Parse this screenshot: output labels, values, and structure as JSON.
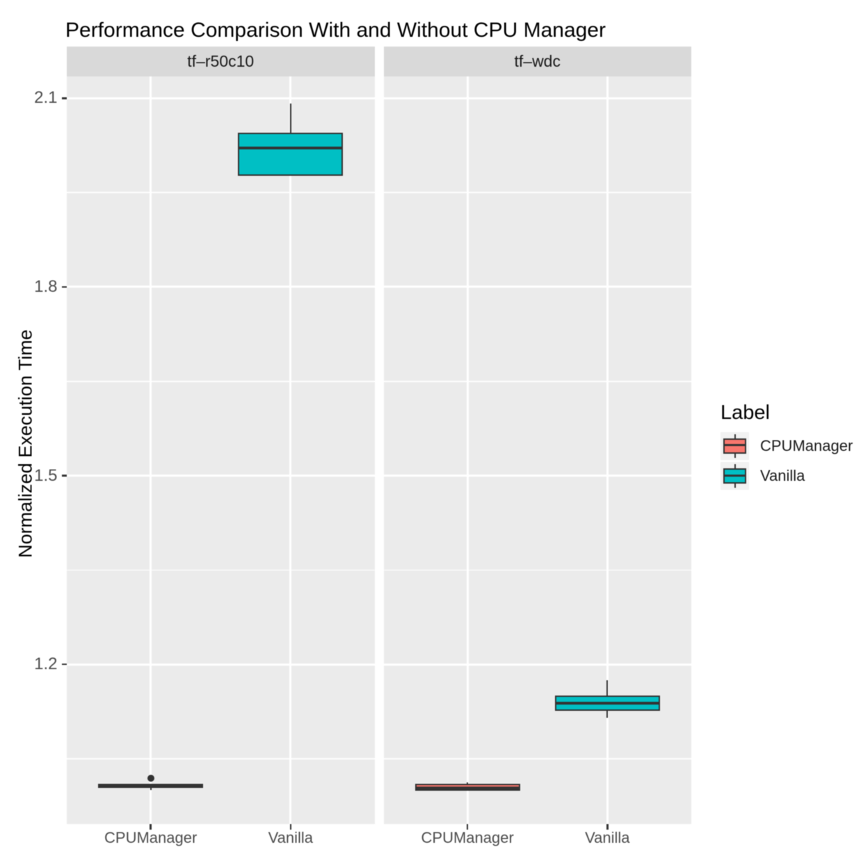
{
  "title": "Performance Comparison With and Without CPU Manager",
  "y_axis": {
    "title": "Normalized Execution Time",
    "tick_labels": [
      "2.1",
      "1.8",
      "1.5",
      "1.2"
    ],
    "tick_values": [
      2.1,
      1.8,
      1.5,
      1.2
    ]
  },
  "x_axis": {
    "categories": [
      "CPUManager",
      "Vanilla"
    ]
  },
  "facets": [
    {
      "label": "tf–r50c10"
    },
    {
      "label": "tf–wdc"
    }
  ],
  "legend": {
    "title": "Label",
    "items": [
      {
        "label": "CPUManager",
        "color": "#F8766D"
      },
      {
        "label": "Vanilla",
        "color": "#00BFC4"
      }
    ]
  },
  "colors": {
    "panel_background": "#EBEBEB",
    "strip_background": "#D9D9D9",
    "gridline": "#FFFFFF",
    "box_outline": "#333333",
    "cpumanager_fill": "#F8766D",
    "vanilla_fill": "#00BFC4",
    "axis_text": "#4D4D4D",
    "legend_key_background": "#F2F2F2"
  },
  "chart_data": {
    "type": "boxplot",
    "title": "Performance Comparison With and Without CPU Manager",
    "xlabel": "",
    "ylabel": "Normalized Execution Time",
    "ylim": [
      0.9455,
      2.135
    ],
    "yticks": [
      1.2,
      1.5,
      1.8,
      2.1
    ],
    "yticks_minor": [
      1.05,
      1.35,
      1.65,
      1.95
    ],
    "legend_position": "right",
    "legend_title": "Label",
    "grid": true,
    "facet_labels": [
      "tf–r50c10",
      "tf–wdc"
    ],
    "categories": [
      "CPUManager",
      "Vanilla"
    ],
    "facets": [
      {
        "label": "tf–r50c10",
        "boxes": [
          {
            "category": "CPUManager",
            "fill": "#F8766D",
            "whisker_low": 1.0,
            "q1": 1.0035,
            "median": 1.007,
            "q3": 1.0105,
            "whisker_high": 1.0105,
            "outliers": [
              1.0195
            ]
          },
          {
            "category": "Vanilla",
            "fill": "#00BFC4",
            "whisker_low": 1.977,
            "q1": 1.977,
            "median": 2.02,
            "q3": 2.045,
            "whisker_high": 2.092,
            "outliers": []
          }
        ]
      },
      {
        "label": "tf–wdc",
        "boxes": [
          {
            "category": "CPUManager",
            "fill": "#F8766D",
            "whisker_low": 0.999,
            "q1": 0.999,
            "median": 1.0025,
            "q3": 1.0103,
            "whisker_high": 1.012,
            "outliers": []
          },
          {
            "category": "Vanilla",
            "fill": "#00BFC4",
            "whisker_low": 1.115,
            "q1": 1.126,
            "median": 1.1375,
            "q3": 1.151,
            "whisker_high": 1.175,
            "outliers": []
          }
        ]
      }
    ]
  }
}
